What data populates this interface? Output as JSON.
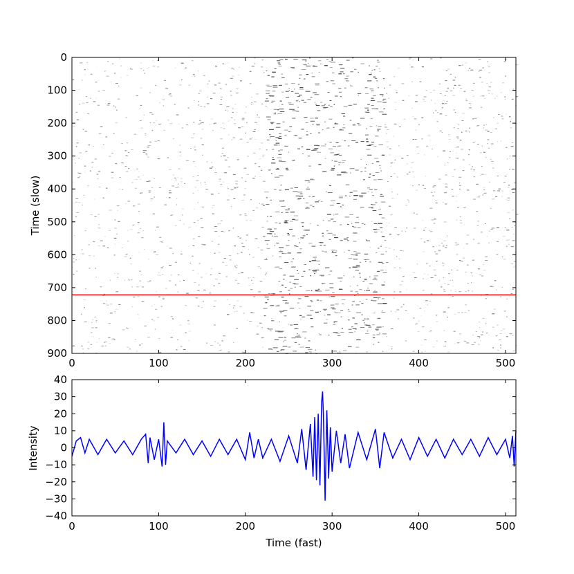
{
  "chart_data": [
    {
      "type": "heatmap",
      "title": "",
      "xlabel": "",
      "ylabel": "Time (slow)",
      "xlim": [
        0,
        512
      ],
      "ylim": [
        900,
        0
      ],
      "x_ticks": [
        "0",
        "100",
        "200",
        "300",
        "400",
        "500"
      ],
      "y_ticks": [
        "0",
        "100",
        "200",
        "300",
        "400",
        "500",
        "600",
        "700",
        "800",
        "900"
      ],
      "colormap": "gray_r",
      "dense_band_x_range": [
        220,
        360
      ],
      "marker_line": {
        "y": 722,
        "color": "#ff0000"
      }
    },
    {
      "type": "line",
      "title": "",
      "xlabel": "Time (fast)",
      "ylabel": "Intensity",
      "xlim": [
        0,
        512
      ],
      "ylim": [
        -40,
        40
      ],
      "x_ticks": [
        "0",
        "100",
        "200",
        "300",
        "400",
        "500"
      ],
      "y_ticks": [
        "40",
        "30",
        "20",
        "10",
        "0",
        "−10",
        "−20",
        "−30",
        "−40"
      ],
      "color": "#0000ff",
      "series": [
        {
          "x": [
            0,
            5,
            10,
            15,
            20,
            30,
            40,
            50,
            60,
            70,
            80,
            85,
            88,
            90,
            95,
            100,
            104,
            106,
            108,
            110,
            120,
            130,
            140,
            150,
            160,
            170,
            180,
            190,
            200,
            205,
            210,
            215,
            220,
            230,
            240,
            250,
            260,
            265,
            270,
            275,
            278,
            280,
            282,
            284,
            286,
            288,
            289,
            290,
            292,
            294,
            296,
            298,
            300,
            305,
            310,
            315,
            320,
            330,
            340,
            350,
            355,
            360,
            370,
            380,
            390,
            400,
            410,
            420,
            430,
            440,
            450,
            460,
            470,
            480,
            490,
            500,
            505,
            508,
            510,
            512
          ],
          "values": [
            -5,
            4,
            6,
            -3,
            5,
            -4,
            5,
            -3,
            4,
            -4,
            5,
            8,
            -9,
            6,
            -7,
            5,
            -11,
            15,
            -10,
            4,
            -3,
            5,
            -4,
            4,
            -5,
            5,
            -4,
            5,
            -7,
            9,
            -6,
            5,
            -6,
            5,
            -8,
            7,
            -9,
            11,
            -13,
            14,
            -17,
            18,
            -19,
            20,
            -22,
            27,
            33,
            20,
            -31,
            22,
            -18,
            12,
            -14,
            10,
            -9,
            8,
            -12,
            9,
            -7,
            11,
            -12,
            9,
            -6,
            5,
            -7,
            6,
            -5,
            5,
            -6,
            5,
            -4,
            5,
            -5,
            6,
            -4,
            5,
            -6,
            7,
            -11,
            10
          ]
        }
      ]
    }
  ]
}
